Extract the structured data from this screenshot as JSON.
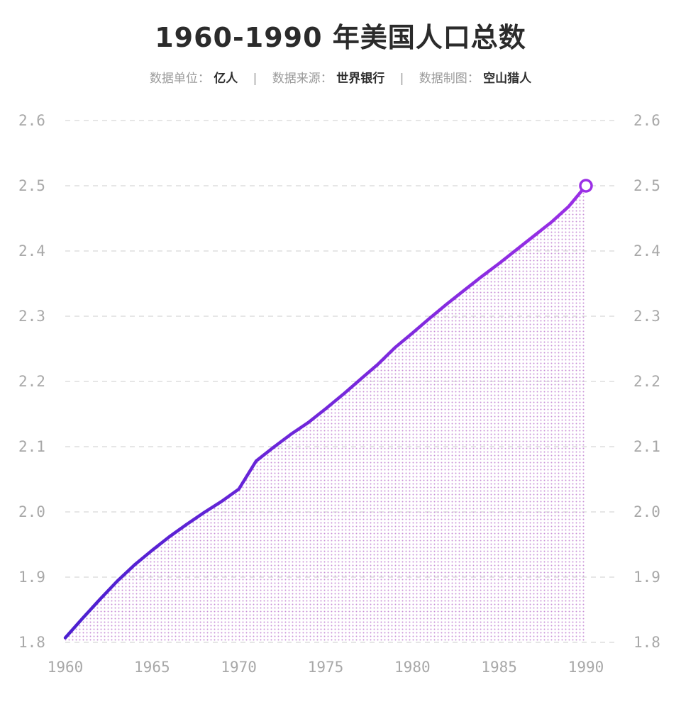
{
  "title": "1960-1990 年美国人口总数",
  "subtitle": {
    "unit_label": "数据单位：",
    "unit_value": "亿人",
    "source_label": "数据来源：",
    "source_value": "世界银行",
    "author_label": "数据制图：",
    "author_value": "空山猎人",
    "separator": "|"
  },
  "colors": {
    "line_start": "#4b1fd0",
    "line_end": "#9b2fe6",
    "area_dot": "#c88fd6",
    "grid": "#d6d6d6",
    "tick": "#a8a8a8"
  },
  "chart_data": {
    "type": "area",
    "title": "1960-1990 年美国人口总数",
    "xlabel": "",
    "ylabel": "",
    "xlim": [
      1960,
      1990
    ],
    "ylim": [
      1.8,
      2.6
    ],
    "x_ticks": [
      "1960",
      "1965",
      "1970",
      "1975",
      "1980",
      "1985",
      "1990"
    ],
    "y_ticks": [
      "1.8",
      "1.9",
      "2.0",
      "2.1",
      "2.2",
      "2.3",
      "2.4",
      "2.5",
      "2.6"
    ],
    "grid": true,
    "right_axis_mirrored": true,
    "x": [
      1960,
      1961,
      1962,
      1963,
      1964,
      1965,
      1966,
      1967,
      1968,
      1969,
      1970,
      1971,
      1972,
      1973,
      1974,
      1975,
      1976,
      1977,
      1978,
      1979,
      1980,
      1981,
      1982,
      1983,
      1984,
      1985,
      1986,
      1987,
      1988,
      1989,
      1990
    ],
    "values": [
      1.807,
      1.837,
      1.866,
      1.894,
      1.919,
      1.941,
      1.962,
      1.981,
      1.999,
      2.016,
      2.035,
      2.078,
      2.099,
      2.119,
      2.137,
      2.158,
      2.18,
      2.203,
      2.226,
      2.252,
      2.274,
      2.297,
      2.319,
      2.34,
      2.361,
      2.381,
      2.402,
      2.423,
      2.444,
      2.468,
      2.5
    ],
    "highlight_last_point": true
  }
}
